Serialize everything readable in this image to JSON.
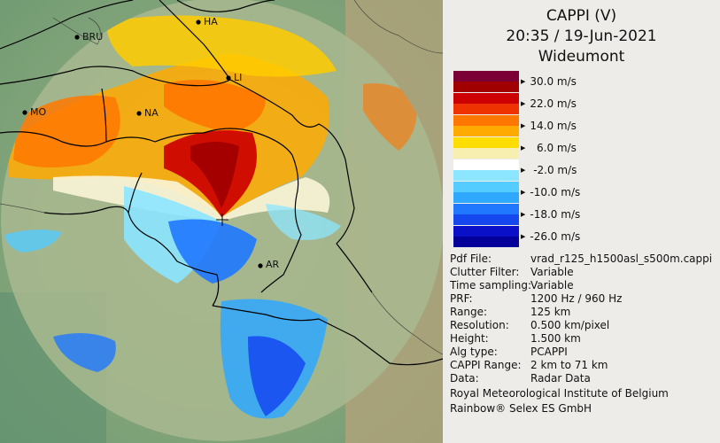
{
  "title": {
    "line1": "CAPPI (V)",
    "line2": "20:35 / 19-Jun-2021",
    "line3": "Wideumont"
  },
  "colors": {
    "scale": [
      "#7a0036",
      "#a10000",
      "#cc0000",
      "#ee3300",
      "#ff7700",
      "#ffaa00",
      "#ffdd00",
      "#f6efb0",
      "#ffffff",
      "#8ce6ff",
      "#55ccff",
      "#2fa8ff",
      "#1f78ff",
      "#1448ee",
      "#0a10c8",
      "#06009a"
    ]
  },
  "scale": {
    "ticks": [
      "30.0 m/s",
      "22.0 m/s",
      "14.0 m/s",
      "  6.0 m/s",
      " -2.0 m/s",
      "-10.0 m/s",
      "-18.0 m/s",
      "-26.0 m/s"
    ]
  },
  "metadata": {
    "rows": [
      {
        "key": "Pdf File:",
        "value": "vrad_r125_h1500asl_s500m.cappi"
      },
      {
        "key": "Clutter Filter:",
        "value": "Variable"
      },
      {
        "key": "Time sampling:",
        "value": "Variable"
      },
      {
        "key": "PRF:",
        "value": "1200 Hz / 960 Hz"
      },
      {
        "key": "Range:",
        "value": "125 km"
      },
      {
        "key": "Resolution:",
        "value": "0.500 km/pixel"
      },
      {
        "key": "Height:",
        "value": "1.500 km"
      },
      {
        "key": "Alg type:",
        "value": "PCAPPI"
      },
      {
        "key": "CAPPI Range:",
        "value": "2 km to 71 km"
      },
      {
        "key": "Data:",
        "value": "Radar Data"
      }
    ]
  },
  "credits": {
    "line1": "Royal Meteorological Institute of Belgium",
    "line2": "Rainbow® Selex ES GmbH"
  },
  "map": {
    "cities": [
      "HA",
      "BRU",
      "LI",
      "MO",
      "NA",
      "AR"
    ]
  }
}
